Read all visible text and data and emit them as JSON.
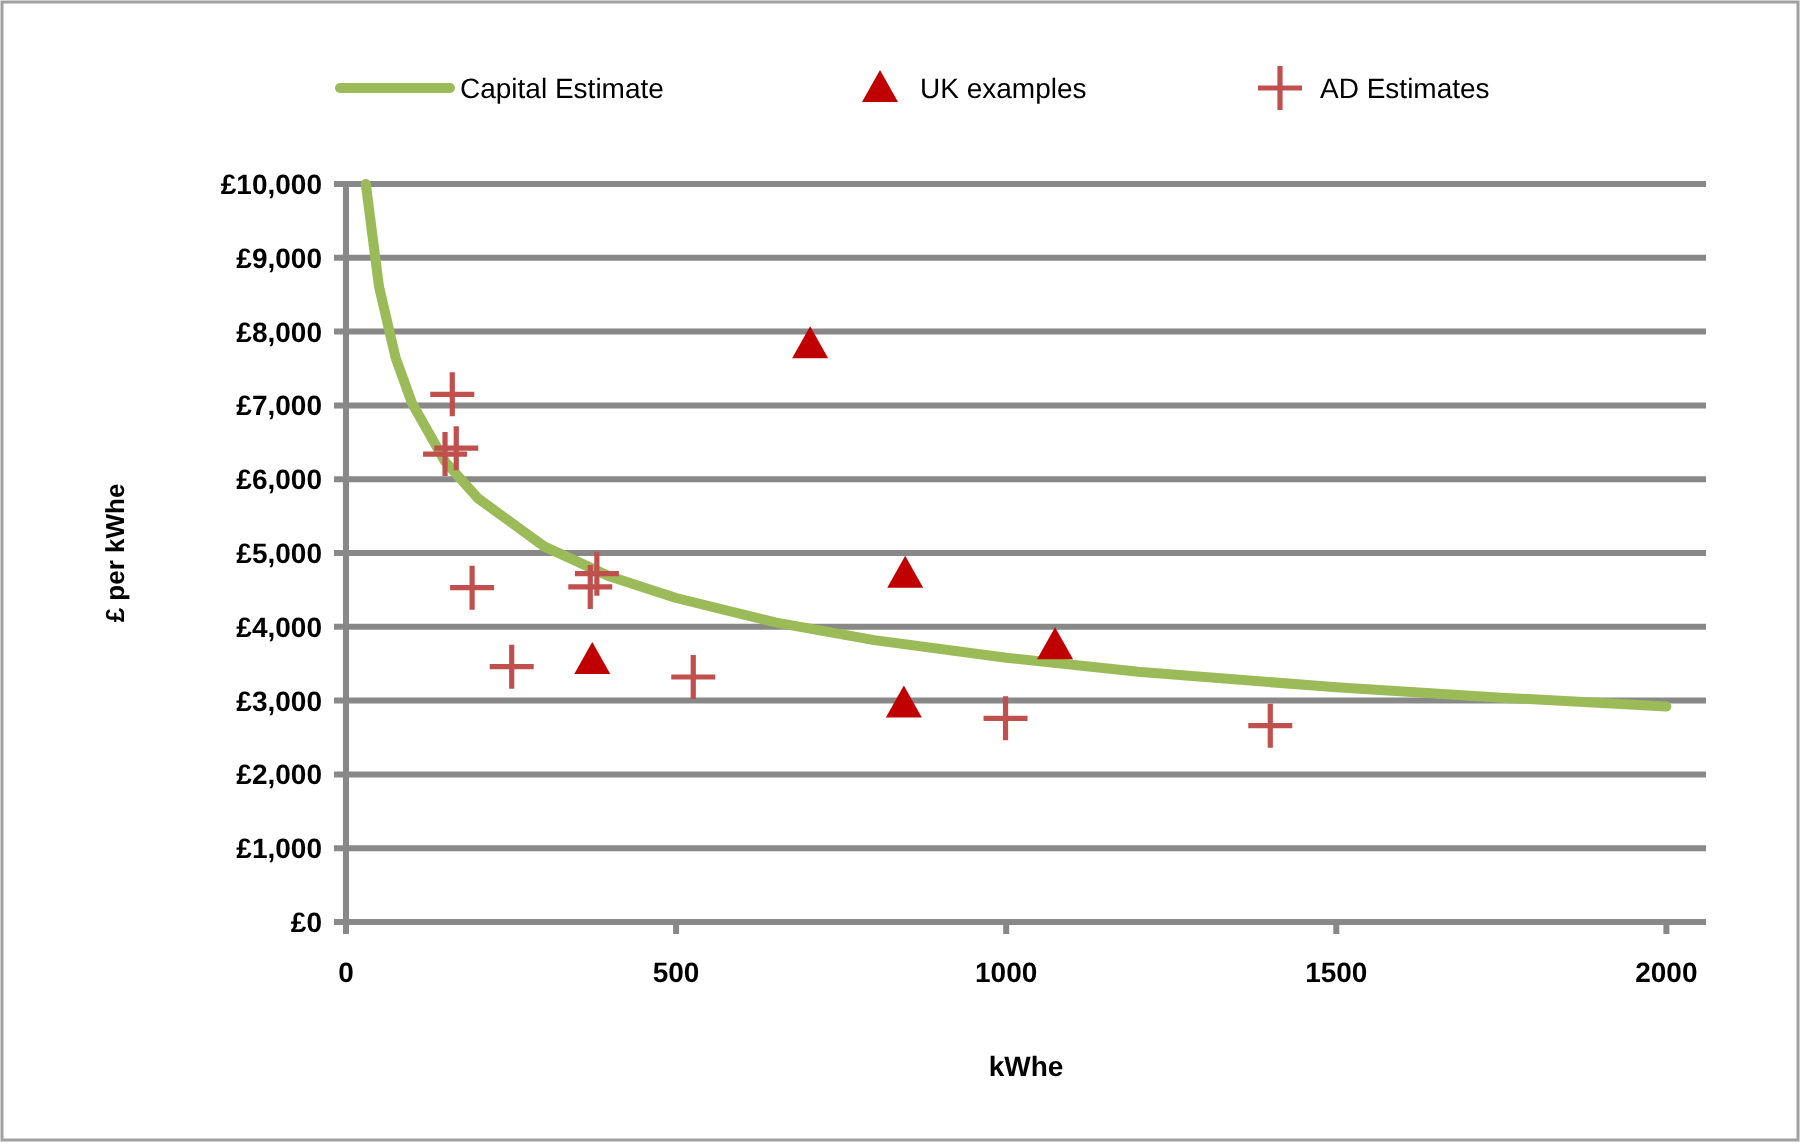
{
  "chart_data": {
    "type": "scatter",
    "xlabel": "kWhe",
    "ylabel": "£ per kWhe",
    "xlim": [
      0,
      2060
    ],
    "xticks": [
      0,
      500,
      1000,
      1500,
      2000
    ],
    "ylim": [
      0,
      10000
    ],
    "yticks": [
      {
        "value": 0,
        "label": "£0"
      },
      {
        "value": 1000,
        "label": "£1,000"
      },
      {
        "value": 2000,
        "label": "£2,000"
      },
      {
        "value": 3000,
        "label": "£3,000"
      },
      {
        "value": 4000,
        "label": "£4,000"
      },
      {
        "value": 5000,
        "label": "£5,000"
      },
      {
        "value": 6000,
        "label": "£6,000"
      },
      {
        "value": 7000,
        "label": "£7,000"
      },
      {
        "value": 8000,
        "label": "£8,000"
      },
      {
        "value": 9000,
        "label": "£9,000"
      },
      {
        "value": 10000,
        "label": "£10,000"
      }
    ],
    "grid": "y",
    "legend": "top",
    "series": [
      {
        "name": "Capital Estimate",
        "type": "line",
        "color": "#9bbb59",
        "marker": "none",
        "x": [
          30,
          50,
          75,
          100,
          150,
          200,
          300,
          400,
          500,
          650,
          800,
          1000,
          1200,
          1500,
          1750,
          2000
        ],
        "values": [
          10000,
          8610,
          7650,
          7030,
          6240,
          5740,
          5090,
          4680,
          4390,
          4060,
          3820,
          3580,
          3390,
          3180,
          3040,
          2920
        ]
      },
      {
        "name": "UK examples",
        "color": "#c00000",
        "marker": "triangle",
        "x": [
          373,
          703,
          847,
          845,
          1074
        ],
        "values": [
          3550,
          7830,
          4720,
          2960,
          3750
        ]
      },
      {
        "name": "AD Estimates",
        "color": "#c0504d",
        "marker": "cross",
        "x": [
          161,
          167,
          150,
          191,
          251,
          370,
          380,
          526,
          999,
          1400
        ],
        "values": [
          7150,
          6420,
          6340,
          4530,
          3460,
          4540,
          4720,
          3320,
          2760,
          2660
        ]
      }
    ]
  }
}
